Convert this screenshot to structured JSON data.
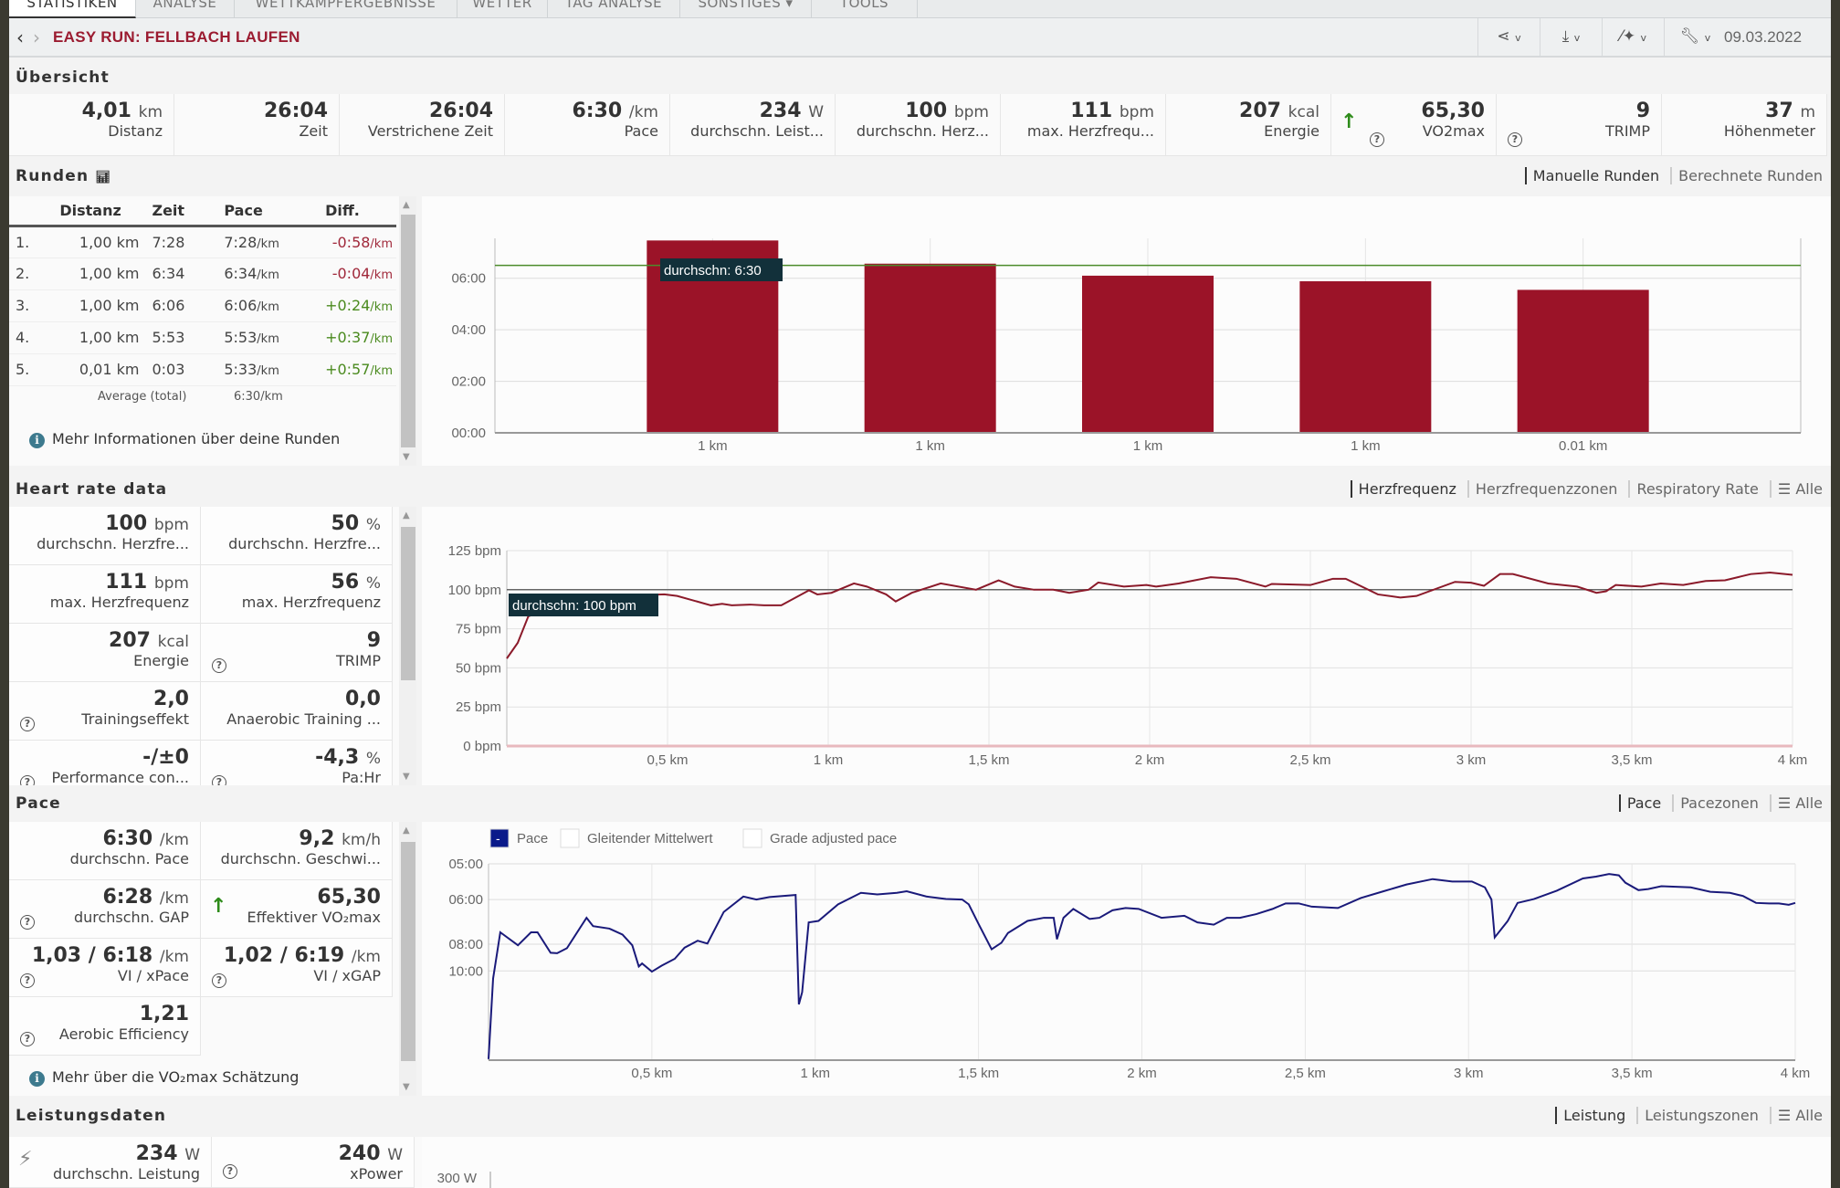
{
  "tabs": [
    "STATISTIKEN",
    "ANALYSE",
    "WETTKAMPFERGEBNISSE",
    "WETTER",
    "TAG ANALYSE",
    "SONSTIGES ▾",
    "TOOLS"
  ],
  "header": {
    "title": "EASY RUN: FELLBACH LAUFEN",
    "date": "09.03.2022",
    "tool_icons": [
      "share-icon",
      "download-icon",
      "magic-wand-icon",
      "wrench-icon"
    ]
  },
  "overview": {
    "title": "Übersicht",
    "stats": [
      {
        "value": "4,01",
        "unit": "km",
        "label": "Distanz"
      },
      {
        "value": "26:04",
        "unit": "",
        "label": "Zeit"
      },
      {
        "value": "26:04",
        "unit": "",
        "label": "Verstrichene Zeit"
      },
      {
        "value": "6:30",
        "unit": "/km",
        "label": "Pace"
      },
      {
        "value": "234",
        "unit": "W",
        "label": "durchschn. Leist..."
      },
      {
        "value": "100",
        "unit": "bpm",
        "label": "durchschn. Herz..."
      },
      {
        "value": "111",
        "unit": "bpm",
        "label": "max. Herzfrequ..."
      },
      {
        "value": "207",
        "unit": "kcal",
        "label": "Energie"
      },
      {
        "value": "65,30",
        "unit": "",
        "label": "VO2max",
        "help": true,
        "arrow": true
      },
      {
        "value": "9",
        "unit": "",
        "label": "TRIMP",
        "help": true
      },
      {
        "value": "37",
        "unit": "m",
        "label": "Höhenmeter"
      }
    ]
  },
  "laps": {
    "title": "Runden",
    "columns": [
      "",
      "Distanz",
      "Zeit",
      "Pace",
      "Diff."
    ],
    "rows": [
      {
        "n": "1.",
        "dist": "1,00 km",
        "time": "7:28",
        "pace": "7:28",
        "diff": "-0:58",
        "sign": "neg"
      },
      {
        "n": "2.",
        "dist": "1,00 km",
        "time": "6:34",
        "pace": "6:34",
        "diff": "-0:04",
        "sign": "neg"
      },
      {
        "n": "3.",
        "dist": "1,00 km",
        "time": "6:06",
        "pace": "6:06",
        "diff": "+0:24",
        "sign": "pos"
      },
      {
        "n": "4.",
        "dist": "1,00 km",
        "time": "5:53",
        "pace": "5:53",
        "diff": "+0:37",
        "sign": "pos"
      },
      {
        "n": "5.",
        "dist": "0,01 km",
        "time": "0:03",
        "pace": "5:33",
        "diff": "+0:57",
        "sign": "pos"
      }
    ],
    "unit": "/km",
    "average_label": "Average (total)",
    "average_pace": "6:30/km",
    "info_link": "Mehr Informationen über deine Runden",
    "toggles": [
      "Manuelle Runden",
      "Berechnete Runden"
    ]
  },
  "heart_rate": {
    "title": "Heart rate data",
    "toggles": [
      "Herzfrequenz",
      "Herzfrequenzzonen",
      "Respiratory Rate",
      "☰ Alle"
    ],
    "stats": [
      {
        "value": "100",
        "unit": "bpm",
        "label": "durchschn. Herzfre..."
      },
      {
        "value": "50",
        "unit": "%",
        "label": "durchschn. Herzfre..."
      },
      {
        "value": "111",
        "unit": "bpm",
        "label": "max. Herzfrequenz"
      },
      {
        "value": "56",
        "unit": "%",
        "label": "max. Herzfrequenz"
      },
      {
        "value": "207",
        "unit": "kcal",
        "label": "Energie"
      },
      {
        "value": "9",
        "unit": "",
        "label": "TRIMP",
        "help": true
      },
      {
        "value": "2,0",
        "unit": "",
        "label": "Trainingseffekt",
        "help": true
      },
      {
        "value": "0,0",
        "unit": "",
        "label": "Anaerobic Training ..."
      },
      {
        "value": "-/±0",
        "unit": "",
        "label": "Performance con...",
        "help": true
      },
      {
        "value": "-4,3",
        "unit": "%",
        "label": "Pa:Hr",
        "help": true
      }
    ]
  },
  "pace": {
    "title": "Pace",
    "toggles": [
      "Pace",
      "Pacezonen",
      "☰ Alle"
    ],
    "stats": [
      {
        "value": "6:30",
        "unit": "/km",
        "label": "durchschn. Pace"
      },
      {
        "value": "9,2",
        "unit": "km/h",
        "label": "durchschn. Geschwi..."
      },
      {
        "value": "6:28",
        "unit": "/km",
        "label": "durchschn. GAP",
        "help": true
      },
      {
        "value": "65,30",
        "unit": "",
        "label": "Effektiver VO₂max",
        "arrow": true
      },
      {
        "value": "1,03 / 6:18",
        "unit": "/km",
        "label": "VI / xPace",
        "help": true
      },
      {
        "value": "1,02 / 6:19",
        "unit": "/km",
        "label": "VI / xGAP",
        "help": true
      },
      {
        "value": "1,21",
        "unit": "",
        "label": "Aerobic Efficiency",
        "help": true
      }
    ],
    "info_link": "Mehr über die VO₂max Schätzung"
  },
  "power": {
    "title": "Leistungsdaten",
    "toggles": [
      "Leistung",
      "Leistungszonen",
      "☰ Alle"
    ],
    "stats": [
      {
        "value": "234",
        "unit": "W",
        "label": "durchschn. Leistung",
        "icon": "lightning-icon"
      },
      {
        "value": "240",
        "unit": "W",
        "label": "xPower",
        "help": true
      }
    ]
  },
  "colors": {
    "title": "#9b1b30",
    "bar": "#9b1328",
    "avg_line": "#4c8c2b",
    "hr_line": "#8b1a2a",
    "pace_line": "#1a1a7a",
    "positive": "#4a8a1e",
    "negative": "#a0283a",
    "tooltip": "#12303a"
  },
  "chart_data": [
    {
      "type": "bar",
      "categories": [
        "1 km",
        "1 km",
        "1 km",
        "1 km",
        "0.01 km"
      ],
      "values": [
        "7:28",
        "6:34",
        "6:06",
        "5:53",
        "5:33"
      ],
      "yticks": [
        "00:00",
        "02:00",
        "04:00",
        "06:00"
      ],
      "ylim": [
        "0:00",
        "7:33"
      ],
      "average": "6:30",
      "average_label": "durchschn: 6:30",
      "grid": true
    },
    {
      "type": "line",
      "xticks": [
        "0,5 km",
        "1 km",
        "1,5 km",
        "2 km",
        "2,5 km",
        "3 km",
        "3,5 km",
        "4 km"
      ],
      "xlim": [
        0,
        4
      ],
      "yticks": [
        "0 bpm",
        "25 bpm",
        "50 bpm",
        "75 bpm",
        "100 bpm",
        "125 bpm"
      ],
      "ylim": [
        0,
        125
      ],
      "average": 100,
      "average_label": "durchschn: 100 bpm",
      "grid": true,
      "x": [
        0,
        0.034,
        0.067,
        0.2,
        0.35,
        0.49,
        0.53,
        0.635,
        0.67,
        0.7,
        0.756,
        0.8,
        0.854,
        0.94,
        0.966,
        1.01,
        1.08,
        1.12,
        1.18,
        1.21,
        1.26,
        1.35,
        1.46,
        1.53,
        1.58,
        1.64,
        1.7,
        1.75,
        1.81,
        1.84,
        1.92,
        1.99,
        2.02,
        2.09,
        2.19,
        2.27,
        2.36,
        2.38,
        2.5,
        2.57,
        2.61,
        2.71,
        2.78,
        2.83,
        2.95,
        3.0,
        3.04,
        3.09,
        3.13,
        3.24,
        3.33,
        3.39,
        3.42,
        3.45,
        3.53,
        3.59,
        3.66,
        3.73,
        3.79,
        3.87,
        3.93,
        4.0
      ],
      "y": [
        56,
        66,
        83,
        93,
        96,
        97,
        96,
        90,
        91,
        90,
        90.5,
        90,
        90,
        99.6,
        97,
        98,
        104,
        102,
        97,
        92.5,
        98,
        104,
        100,
        106,
        102,
        100,
        100,
        98,
        100,
        104.6,
        102,
        103,
        102,
        104,
        108,
        107,
        102,
        103.7,
        103,
        107,
        107,
        97,
        95,
        96,
        105,
        104.5,
        102.5,
        110,
        110,
        104,
        102,
        98,
        99,
        103,
        102,
        104,
        103,
        105.6,
        106,
        110,
        111,
        109.5
      ]
    },
    {
      "type": "line",
      "legend": [
        "Pace",
        "Gleitender Mittelwert",
        "Grade adjusted pace"
      ],
      "legend_active": [
        true,
        false,
        false
      ],
      "xticks": [
        "0,5 km",
        "1 km",
        "1,5 km",
        "2 km",
        "2,5 km",
        "3 km",
        "3,5 km",
        "4 km"
      ],
      "xlim": [
        0,
        4
      ],
      "yticks": [
        "05:00",
        "06:00",
        "08:00",
        "10:00"
      ],
      "ylim": [
        "60:00",
        "5:00"
      ],
      "grid": true,
      "x": [
        0,
        0.014,
        0.036,
        0.09,
        0.13,
        0.15,
        0.19,
        0.21,
        0.24,
        0.3,
        0.32,
        0.37,
        0.41,
        0.44,
        0.46,
        0.47,
        0.5,
        0.53,
        0.57,
        0.6,
        0.64,
        0.67,
        0.72,
        0.78,
        0.82,
        0.86,
        0.94,
        0.95,
        0.96,
        0.98,
        1.01,
        1.07,
        1.14,
        1.19,
        1.25,
        1.28,
        1.34,
        1.4,
        1.45,
        1.47,
        1.5,
        1.54,
        1.57,
        1.59,
        1.65,
        1.7,
        1.73,
        1.74,
        1.76,
        1.79,
        1.84,
        1.87,
        1.91,
        1.95,
        1.99,
        2.06,
        2.13,
        2.17,
        2.22,
        2.26,
        2.3,
        2.35,
        2.4,
        2.44,
        2.48,
        2.52,
        2.6,
        2.67,
        2.74,
        2.81,
        2.89,
        2.95,
        3.01,
        3.05,
        3.07,
        3.08,
        3.12,
        3.15,
        3.2,
        3.27,
        3.35,
        3.39,
        3.43,
        3.46,
        3.48,
        3.52,
        3.55,
        3.59,
        3.68,
        3.74,
        3.8,
        3.84,
        3.88,
        3.92,
        3.95,
        3.98,
        4.0
      ],
      "y": [
        "56:36",
        "10:46",
        "7:21",
        "8:04",
        "7:21",
        "7:21",
        "8:33",
        "8:35",
        "8:15",
        "6:41",
        "7:03",
        "7:10",
        "7:28",
        "8:04",
        "9:36",
        "9:21",
        "10:04",
        "9:32",
        "8:59",
        "8:13",
        "7:48",
        "7:58",
        "6:27",
        "5:54",
        "6:00",
        "5:55",
        "5:51",
        "14:32",
        "12:29",
        "6:53",
        "6:49",
        "6:10",
        "5:47",
        "5:50",
        "5:47",
        "5:44",
        "5:54",
        "5:59",
        "6:00",
        "6:10",
        "6:57",
        "8:19",
        "7:55",
        "7:23",
        "6:49",
        "6:41",
        "6:41",
        "7:43",
        "6:41",
        "6:20",
        "6:44",
        "6:41",
        "6:23",
        "6:18",
        "6:20",
        "6:41",
        "6:36",
        "6:53",
        "6:59",
        "6:41",
        "6:41",
        "6:32",
        "6:20",
        "6:08",
        "6:08",
        "6:15",
        "6:18",
        "5:57",
        "5:44",
        "5:32",
        "5:23",
        "5:27",
        "5:27",
        "5:37",
        "6:00",
        "7:37",
        "6:49",
        "6:07",
        "5:59",
        "5:43",
        "5:22",
        "5:19",
        "5:15",
        "5:17",
        "5:29",
        "5:42",
        "5:40",
        "5:35",
        "5:37",
        "5:45",
        "5:47",
        "5:53",
        "6:07",
        "6:08",
        "6:08",
        "6:11",
        "6:07"
      ]
    },
    {
      "type": "line",
      "yticks": [
        "300 W"
      ]
    }
  ]
}
